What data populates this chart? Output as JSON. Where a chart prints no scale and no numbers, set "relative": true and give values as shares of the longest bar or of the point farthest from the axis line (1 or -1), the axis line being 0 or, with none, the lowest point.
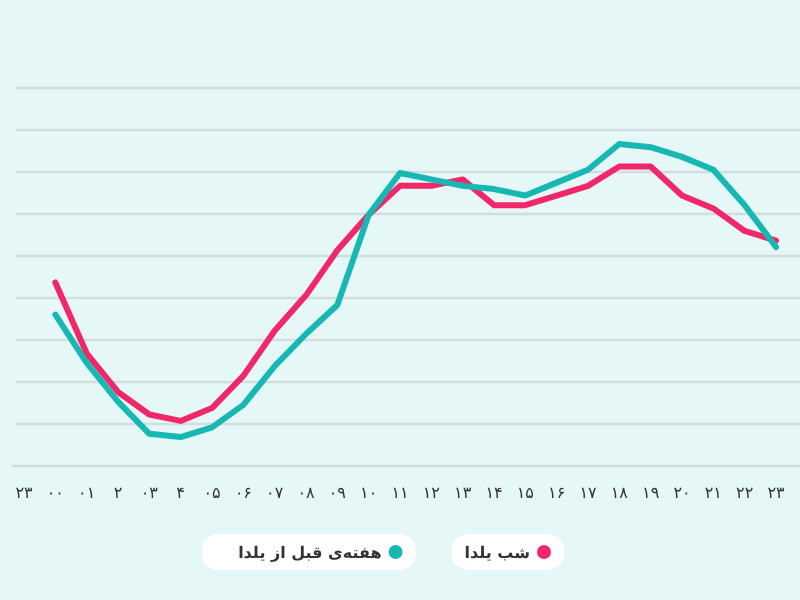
{
  "chart_data": {
    "type": "line",
    "relative": true,
    "categories": [
      "۲۳",
      "۰۰",
      "۰۱",
      "۲",
      "۰۳",
      "۴",
      "۰۵",
      "۰۶",
      "۰۷",
      "۰۸",
      "۰۹",
      "۱۰",
      "۱۱",
      "۱۲",
      "۱۳",
      "۱۴",
      "۱۵",
      "۱۶",
      "۱۷",
      "۱۸",
      "۱۹",
      "۲۰",
      "۲۱",
      "۲۲",
      "۲۳"
    ],
    "series": [
      {
        "name": "شب یلدا",
        "color": "#f0286a",
        "values": [
          null,
          0.57,
          0.35,
          0.23,
          0.16,
          0.14,
          0.18,
          0.28,
          0.42,
          0.53,
          0.67,
          0.78,
          0.87,
          0.87,
          0.89,
          0.81,
          0.81,
          0.84,
          0.87,
          0.93,
          0.93,
          0.84,
          0.8,
          0.73,
          0.7
        ]
      },
      {
        "name": "هفته‌ی قبل از یلدا",
        "color": "#17b8b4",
        "values": [
          null,
          0.47,
          0.32,
          0.2,
          0.1,
          0.09,
          0.12,
          0.19,
          0.31,
          0.41,
          0.5,
          0.78,
          0.91,
          0.89,
          0.87,
          0.86,
          0.84,
          0.88,
          0.92,
          1,
          0.99,
          0.96,
          0.92,
          0.81,
          0.68
        ]
      }
    ],
    "grid": "y",
    "legend": "bottom",
    "line_style": "solid"
  }
}
